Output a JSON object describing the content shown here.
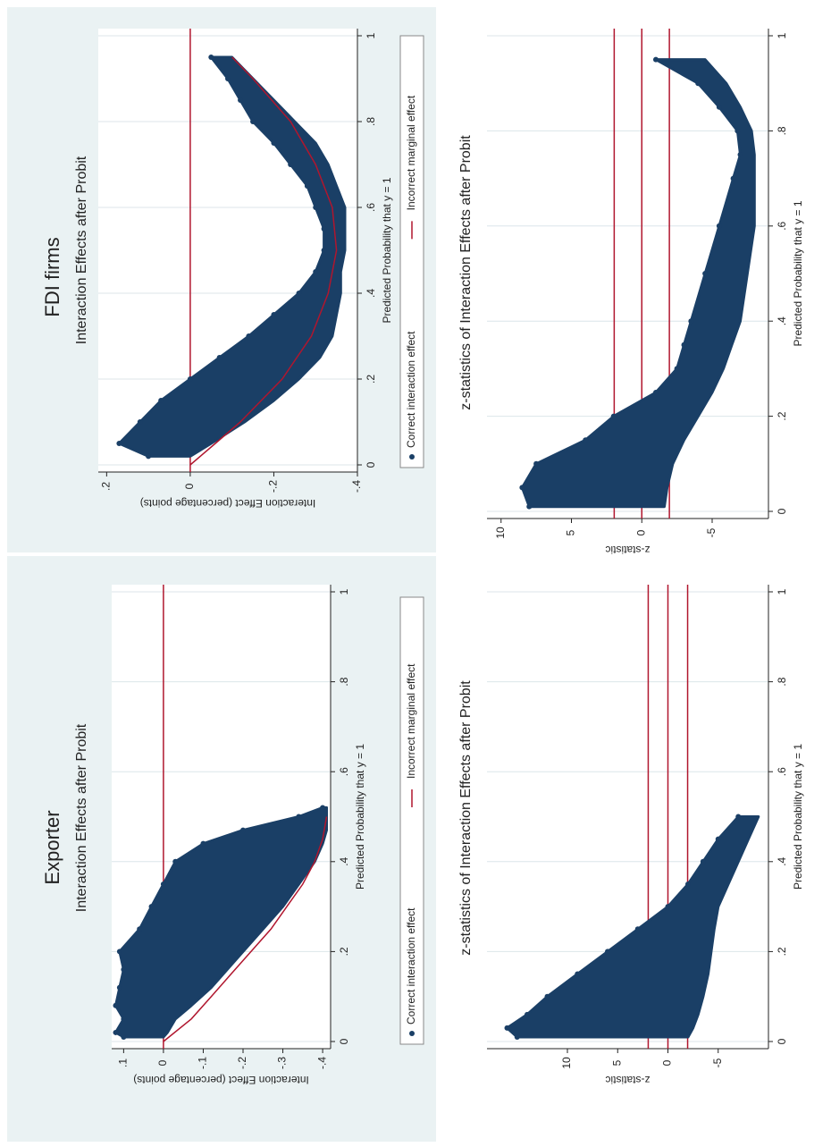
{
  "groups": [
    {
      "label": "Exporter"
    },
    {
      "label": "FDI firms"
    }
  ],
  "chart_data": [
    {
      "type": "scatter",
      "group": "Exporter",
      "title": "Interaction Effects after Probit",
      "xlabel": "Predicted Probability that y = 1",
      "ylabel": "Interaction Effect (percentage points)",
      "xlim": [
        0,
        1
      ],
      "ylim": [
        -0.42,
        0.13
      ],
      "xticks": [
        0,
        0.2,
        0.4,
        0.6,
        0.8,
        1
      ],
      "xtick_labels": [
        "0",
        ".2",
        ".4",
        ".6",
        ".8",
        "1"
      ],
      "yticks": [
        0.1,
        0,
        -0.1,
        -0.2,
        -0.3,
        -0.4
      ],
      "ytick_labels": [
        ".1",
        "0",
        "-.1",
        "-.2",
        "-.3",
        "-.4"
      ],
      "grid": true,
      "legend_position": "bottom",
      "legend": [
        "Correct interaction effect",
        "Incorrect marginal effect"
      ],
      "hlines": [
        0
      ],
      "series": [
        {
          "name": "Correct interaction effect",
          "kind": "band",
          "x": [
            0.01,
            0.02,
            0.05,
            0.08,
            0.12,
            0.16,
            0.2,
            0.25,
            0.3,
            0.35,
            0.4,
            0.44,
            0.47,
            0.5,
            0.52
          ],
          "upper": [
            0.1,
            0.12,
            0.1,
            0.12,
            0.11,
            0.1,
            0.11,
            0.06,
            0.03,
            0.0,
            -0.03,
            -0.1,
            -0.2,
            -0.34,
            -0.4
          ],
          "lower": [
            0.0,
            -0.01,
            -0.03,
            -0.07,
            -0.12,
            -0.16,
            -0.2,
            -0.25,
            -0.3,
            -0.34,
            -0.38,
            -0.4,
            -0.41,
            -0.41,
            -0.41
          ]
        },
        {
          "name": "Incorrect marginal effect",
          "kind": "line",
          "x": [
            0,
            0.05,
            0.1,
            0.15,
            0.2,
            0.25,
            0.3,
            0.35,
            0.4,
            0.45,
            0.5
          ],
          "y": [
            0,
            -0.07,
            -0.12,
            -0.17,
            -0.22,
            -0.27,
            -0.31,
            -0.35,
            -0.38,
            -0.4,
            -0.41
          ]
        }
      ]
    },
    {
      "type": "scatter",
      "group": "Exporter",
      "title": "z-statistics of Interaction Effects after Probit",
      "xlabel": "Predicted Probability that y = 1",
      "ylabel": "z-statistic",
      "xlim": [
        0,
        1
      ],
      "ylim": [
        -10,
        18
      ],
      "xticks": [
        0,
        0.2,
        0.4,
        0.6,
        0.8,
        1
      ],
      "xtick_labels": [
        "0",
        ".2",
        ".4",
        ".6",
        ".8",
        "1"
      ],
      "yticks": [
        10,
        5,
        0,
        -5
      ],
      "ytick_labels": [
        "10",
        "5",
        "0",
        "-5"
      ],
      "grid": true,
      "hlines": [
        1.96,
        0,
        -1.96
      ],
      "series": [
        {
          "kind": "band",
          "x": [
            0.01,
            0.03,
            0.06,
            0.1,
            0.15,
            0.2,
            0.25,
            0.3,
            0.35,
            0.4,
            0.45,
            0.5
          ],
          "upper": [
            15,
            16,
            14,
            12,
            9,
            6,
            3,
            0,
            -2,
            -3.5,
            -5,
            -7
          ],
          "lower": [
            -2,
            -2.5,
            -3,
            -3.5,
            -4,
            -4.3,
            -4.6,
            -5,
            -6,
            -7,
            -8,
            -9
          ]
        }
      ]
    },
    {
      "type": "scatter",
      "group": "FDI firms",
      "title": "Interaction Effects after Probit",
      "xlabel": "Predicted Probability that y = 1",
      "ylabel": "Interaction Effect (percentage points)",
      "xlim": [
        0,
        1
      ],
      "ylim": [
        -0.4,
        0.22
      ],
      "xticks": [
        0,
        0.2,
        0.4,
        0.6,
        0.8,
        1
      ],
      "xtick_labels": [
        "0",
        ".2",
        ".4",
        ".6",
        ".8",
        "1"
      ],
      "yticks": [
        0.2,
        0,
        -0.2,
        -0.4
      ],
      "ytick_labels": [
        ".2",
        "0",
        "-.2",
        "-.4"
      ],
      "grid": true,
      "legend_position": "bottom",
      "legend": [
        "Correct interaction effect",
        "Incorrect marginal effect"
      ],
      "hlines": [
        0
      ],
      "series": [
        {
          "name": "Correct interaction effect",
          "kind": "band",
          "x": [
            0.02,
            0.05,
            0.1,
            0.15,
            0.2,
            0.25,
            0.3,
            0.35,
            0.4,
            0.45,
            0.5,
            0.55,
            0.6,
            0.65,
            0.7,
            0.75,
            0.8,
            0.85,
            0.9,
            0.95
          ],
          "upper": [
            0.1,
            0.17,
            0.12,
            0.07,
            0.0,
            -0.07,
            -0.14,
            -0.2,
            -0.26,
            -0.3,
            -0.32,
            -0.32,
            -0.3,
            -0.28,
            -0.24,
            -0.2,
            -0.15,
            -0.12,
            -0.09,
            -0.05
          ],
          "lower": [
            0.0,
            -0.05,
            -0.13,
            -0.2,
            -0.26,
            -0.31,
            -0.34,
            -0.35,
            -0.36,
            -0.36,
            -0.37,
            -0.37,
            -0.37,
            -0.35,
            -0.33,
            -0.3,
            -0.25,
            -0.2,
            -0.15,
            -0.1
          ]
        },
        {
          "name": "Incorrect marginal effect",
          "kind": "line",
          "x": [
            0,
            0.05,
            0.1,
            0.15,
            0.2,
            0.3,
            0.4,
            0.5,
            0.6,
            0.7,
            0.8,
            0.9,
            0.95
          ],
          "y": [
            0,
            -0.06,
            -0.12,
            -0.17,
            -0.22,
            -0.29,
            -0.33,
            -0.35,
            -0.34,
            -0.3,
            -0.24,
            -0.15,
            -0.1
          ]
        }
      ]
    },
    {
      "type": "scatter",
      "group": "FDI firms",
      "title": "z-statistics of Interaction Effects after Probit",
      "xlabel": "Predicted Probability that y = 1",
      "ylabel": "z-statistic",
      "xlim": [
        0,
        1
      ],
      "ylim": [
        -9,
        11
      ],
      "xticks": [
        0,
        0.2,
        0.4,
        0.6,
        0.8,
        1
      ],
      "xtick_labels": [
        "0",
        ".2",
        ".4",
        ".6",
        ".8",
        "1"
      ],
      "yticks": [
        10,
        5,
        0,
        -5
      ],
      "ytick_labels": [
        "10",
        "5",
        "0",
        "-5"
      ],
      "grid": true,
      "hlines": [
        1.96,
        0,
        -1.96
      ],
      "series": [
        {
          "kind": "band",
          "x": [
            0.01,
            0.05,
            0.1,
            0.15,
            0.2,
            0.25,
            0.3,
            0.35,
            0.4,
            0.5,
            0.6,
            0.7,
            0.75,
            0.8,
            0.85,
            0.9,
            0.95
          ],
          "upper": [
            8,
            8.5,
            7.5,
            4,
            2,
            -1,
            -2.5,
            -3,
            -3.5,
            -4.5,
            -5.5,
            -6.5,
            -7,
            -6.8,
            -5.5,
            -4,
            -1
          ],
          "lower": [
            -1.6,
            -1.8,
            -2.2,
            -3,
            -4,
            -5,
            -5.8,
            -6.4,
            -7,
            -7.5,
            -8,
            -8,
            -8,
            -7.8,
            -7,
            -6,
            -4.5
          ]
        }
      ]
    }
  ],
  "colors": {
    "page_bg": "#ffffff",
    "outer_bg": "#eaf2f3",
    "plot_bg": "#ffffff",
    "grid": "#dce6ea",
    "points": "#1a3f66",
    "reference_line": "#b0162e",
    "text": "#222222"
  }
}
